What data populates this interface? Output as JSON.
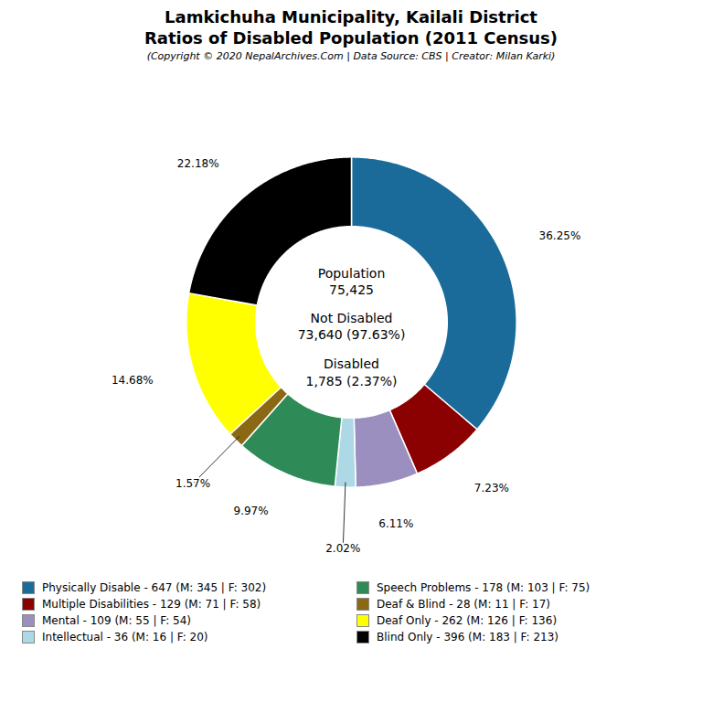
{
  "chart_data": {
    "type": "donut",
    "title": "Lamkichuha Municipality, Kailali District\nRatios of Disabled Population (2011 Census)",
    "subtitle": "(Copyright © 2020 NepalArchives.Com | Data Source: CBS | Creator: Milan Karki)",
    "categories": [
      "Physically Disable - 647 (M: 345 | F: 302)",
      "Multiple Disabilities - 129 (M: 71 | F: 58)",
      "Mental - 109 (M: 55 | F: 54)",
      "Intellectual - 36 (M: 16 | F: 20)",
      "Speech Problems - 178 (M: 103 | F: 75)",
      "Deaf & Blind - 28 (M: 11 | F: 17)",
      "Deaf Only - 262 (M: 126 | F: 136)",
      "Blind Only - 396 (M: 183 | F: 213)"
    ],
    "values": [
      36.25,
      7.23,
      6.11,
      2.02,
      9.97,
      1.57,
      14.68,
      22.18
    ],
    "value_labels": [
      "36.25%",
      "7.23%",
      "6.11%",
      "2.02%",
      "9.97%",
      "1.57%",
      "14.68%",
      "22.18%"
    ],
    "colors": [
      "#1a6b9a",
      "#8b0000",
      "#9b8fc0",
      "#add8e6",
      "#2e8b57",
      "#8b6914",
      "#ffff00",
      "#000000"
    ],
    "data_labels": true,
    "legend": "bottom",
    "annotations": [
      "Population\n75,425",
      "Not Disabled\n73,640 (97.63%)",
      "Disabled\n1,785 (2.37%)"
    ]
  }
}
